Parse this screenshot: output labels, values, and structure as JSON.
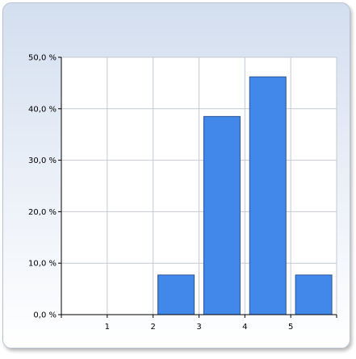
{
  "chart_data": {
    "type": "bar",
    "categories": [
      "1",
      "2",
      "3",
      "4",
      "5"
    ],
    "values": [
      0,
      7.7,
      38.5,
      46.2,
      7.7
    ],
    "ylim": [
      0,
      50
    ],
    "yticks": [
      0,
      10,
      20,
      30,
      40,
      50
    ],
    "ytick_labels": [
      "0,0 %",
      "10,0 %",
      "20,0 %",
      "30,0 %",
      "40,0 %",
      "50,0 %"
    ],
    "title": "",
    "xlabel": "",
    "ylabel": "",
    "grid": true,
    "legend": "none",
    "colors": {
      "bar_fill": "#4287ea",
      "bar_stroke": "#2a5596",
      "grid": "#c4c9d2",
      "axis": "#000000",
      "plot_background": "#ffffff"
    }
  }
}
